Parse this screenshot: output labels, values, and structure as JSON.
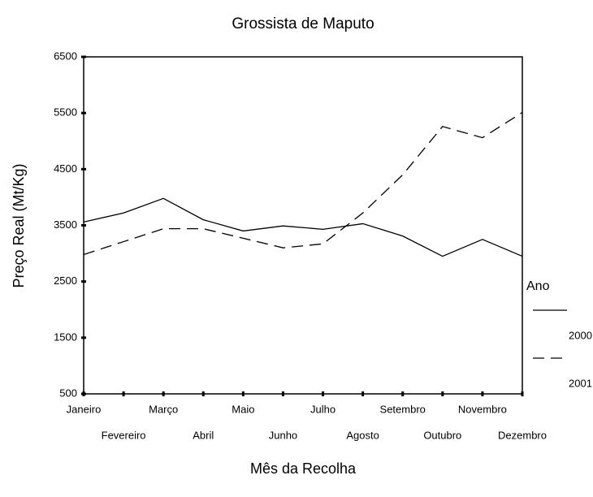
{
  "chart_data": {
    "type": "line",
    "title": "Grossista de Maputo",
    "x_label": "Mês da Recolha",
    "y_label": "Preço Real (Mt/Kg)",
    "categories": [
      "Janeiro",
      "Fevereiro",
      "Março",
      "Abril",
      "Maio",
      "Junho",
      "Julho",
      "Agosto",
      "Setembro",
      "Outubro",
      "Novembro",
      "Dezembro"
    ],
    "series": [
      {
        "name": "2000",
        "color": "#000000",
        "style": "solid",
        "values": [
          3560,
          3720,
          3980,
          3600,
          3400,
          3490,
          3430,
          3530,
          3310,
          2950,
          3250,
          2950
        ]
      },
      {
        "name": "2001",
        "color": "#000000",
        "style": "dashed",
        "values": [
          2980,
          3210,
          3440,
          3440,
          3270,
          3100,
          3170,
          3720,
          4400,
          5260,
          5060,
          5510
        ]
      }
    ],
    "legend_title": "Ano",
    "ylim": [
      500,
      6500
    ],
    "yticks": [
      500,
      1500,
      2500,
      3500,
      4500,
      5500,
      6500
    ],
    "grid": false
  }
}
